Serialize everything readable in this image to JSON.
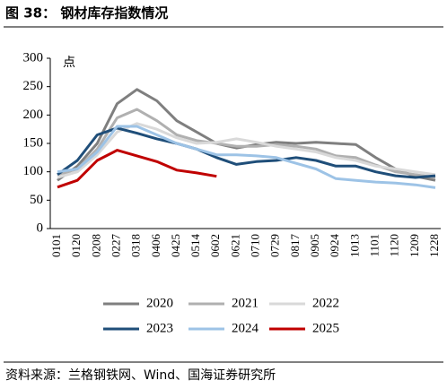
{
  "chart_data": {
    "type": "line",
    "title": "图 38：  钢材库存指数情况",
    "y_unit": "点",
    "source": "资料来源：兰格钢铁网、Wind、国海证券研究所",
    "categories": [
      "0101",
      "0120",
      "0208",
      "0227",
      "0318",
      "0406",
      "0425",
      "0514",
      "0602",
      "0621",
      "0710",
      "0729",
      "0817",
      "0905",
      "0924",
      "1013",
      "1101",
      "1120",
      "1209",
      "1228"
    ],
    "ylim": [
      0,
      300
    ],
    "yticks": [
      0,
      50,
      100,
      150,
      200,
      250,
      300
    ],
    "series": [
      {
        "name": "2020",
        "color": "#7f7f7f",
        "values": [
          85,
          110,
          150,
          220,
          245,
          225,
          190,
          170,
          150,
          142,
          148,
          152,
          150,
          152,
          150,
          148,
          125,
          105,
          92,
          85
        ]
      },
      {
        "name": "2021",
        "color": "#b0b0b0",
        "values": [
          95,
          105,
          140,
          195,
          210,
          190,
          165,
          155,
          150,
          145,
          145,
          148,
          145,
          140,
          128,
          125,
          112,
          100,
          95,
          90
        ]
      },
      {
        "name": "2022",
        "color": "#d9d9d9",
        "values": [
          90,
          100,
          130,
          170,
          185,
          175,
          160,
          150,
          152,
          158,
          152,
          145,
          140,
          135,
          125,
          120,
          110,
          105,
          100,
          95
        ]
      },
      {
        "name": "2023",
        "color": "#1f4e79",
        "values": [
          95,
          120,
          165,
          177,
          168,
          158,
          150,
          140,
          125,
          113,
          118,
          120,
          125,
          120,
          110,
          110,
          100,
          93,
          90,
          93
        ]
      },
      {
        "name": "2024",
        "color": "#9dc3e6",
        "values": [
          100,
          105,
          135,
          180,
          180,
          165,
          150,
          140,
          130,
          130,
          128,
          125,
          115,
          105,
          88,
          85,
          82,
          80,
          77,
          72
        ]
      },
      {
        "name": "2025",
        "color": "#c00000",
        "values": [
          73,
          85,
          120,
          138,
          128,
          118,
          103,
          98,
          92,
          null,
          null,
          null,
          null,
          null,
          null,
          null,
          null,
          null,
          null,
          null
        ]
      }
    ]
  }
}
